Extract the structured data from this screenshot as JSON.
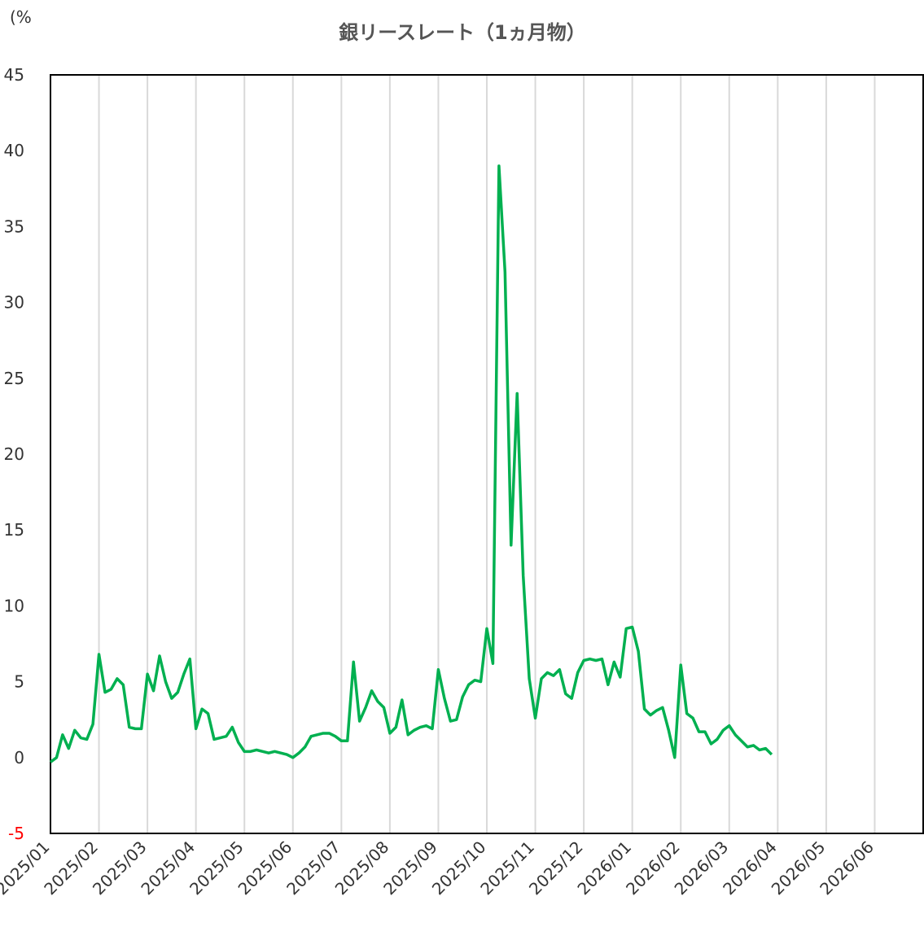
{
  "chart_data": {
    "type": "line",
    "title": "銀リースレート（1ヵ月物）",
    "y_label": "(%",
    "x": [
      "2025/01",
      null,
      null,
      null,
      null,
      null,
      null,
      null,
      "2025/02",
      null,
      null,
      null,
      null,
      null,
      null,
      null,
      "2025/03",
      null,
      null,
      null,
      null,
      null,
      null,
      null,
      "2025/04",
      null,
      null,
      null,
      null,
      null,
      null,
      null,
      "2025/05",
      null,
      null,
      null,
      null,
      null,
      null,
      null,
      "2025/06",
      null,
      null,
      null,
      null,
      null,
      null,
      null,
      "2025/07",
      null,
      null,
      null,
      null,
      null,
      null,
      null,
      "2025/08",
      null,
      null,
      null,
      null,
      null,
      null,
      null,
      "2025/09",
      null,
      null,
      null,
      null,
      null,
      null,
      null,
      "2025/10",
      null,
      null,
      null,
      null,
      null,
      null,
      null,
      "2025/11",
      null,
      null,
      null,
      null,
      null,
      null,
      null,
      "2025/12",
      null,
      null,
      null,
      null,
      null,
      null,
      null,
      "2026/01",
      null,
      null,
      null,
      null,
      null,
      null,
      null,
      "2026/02",
      null,
      null,
      null,
      null,
      null,
      null,
      null,
      "2026/03",
      null,
      null,
      null,
      null,
      null,
      null,
      null,
      "2026/04",
      null,
      null,
      null,
      null,
      null,
      null,
      null,
      "2026/05",
      null,
      null,
      null,
      null,
      null,
      null,
      null,
      "2026/06",
      null,
      null,
      null,
      null,
      null,
      null,
      null
    ],
    "series": [
      {
        "name": "銀リースレート",
        "color": "#00b050",
        "values": [
          -0.3,
          0,
          1.5,
          0.6,
          1.8,
          1.3,
          1.2,
          2.2,
          6.8,
          4.3,
          4.5,
          5.2,
          4.8,
          2.0,
          1.9,
          1.9,
          5.5,
          4.4,
          6.7,
          5.0,
          3.9,
          4.3,
          5.5,
          6.5,
          1.9,
          3.2,
          2.9,
          1.2,
          1.3,
          1.4,
          2.0,
          1.0,
          0.4,
          0.4,
          0.5,
          0.4,
          0.3,
          0.4,
          0.3,
          0.2,
          0.0,
          0.3,
          0.7,
          1.4,
          1.5,
          1.6,
          1.6,
          1.4,
          1.1,
          1.1,
          6.3,
          2.4,
          3.3,
          4.4,
          3.7,
          3.3,
          1.6,
          2.0,
          3.8,
          1.5,
          1.8,
          2.0,
          2.1,
          1.9,
          5.8,
          3.9,
          2.4,
          2.5,
          4.0,
          4.8,
          5.1,
          5.0,
          8.5,
          6.2,
          39,
          32,
          14,
          24,
          12,
          5.2,
          2.6,
          5.2,
          5.6,
          5.4,
          5.8,
          4.2,
          3.9,
          5.6,
          6.4,
          6.5,
          6.4,
          6.5,
          4.8,
          6.3,
          5.3,
          8.5,
          8.6,
          7.0,
          3.2,
          2.8,
          3.1,
          3.3,
          1.8,
          0.0,
          6.1,
          2.9,
          2.6,
          1.7,
          1.7,
          0.9,
          1.2,
          1.8,
          2.1,
          1.5,
          1.1,
          0.7,
          0.8,
          0.5,
          0.6,
          0.2,
          null,
          null,
          null,
          null,
          null,
          null,
          null,
          null,
          null,
          null,
          null,
          null,
          null,
          null,
          null,
          null,
          null,
          null,
          null,
          null,
          null,
          null,
          null,
          null
        ]
      }
    ],
    "ylim": [
      -5,
      45
    ],
    "yticks": [
      -5,
      0,
      5,
      10,
      15,
      20,
      25,
      30,
      35,
      40,
      45
    ],
    "grid": "x",
    "negative_tick_color": "#ff0000"
  }
}
